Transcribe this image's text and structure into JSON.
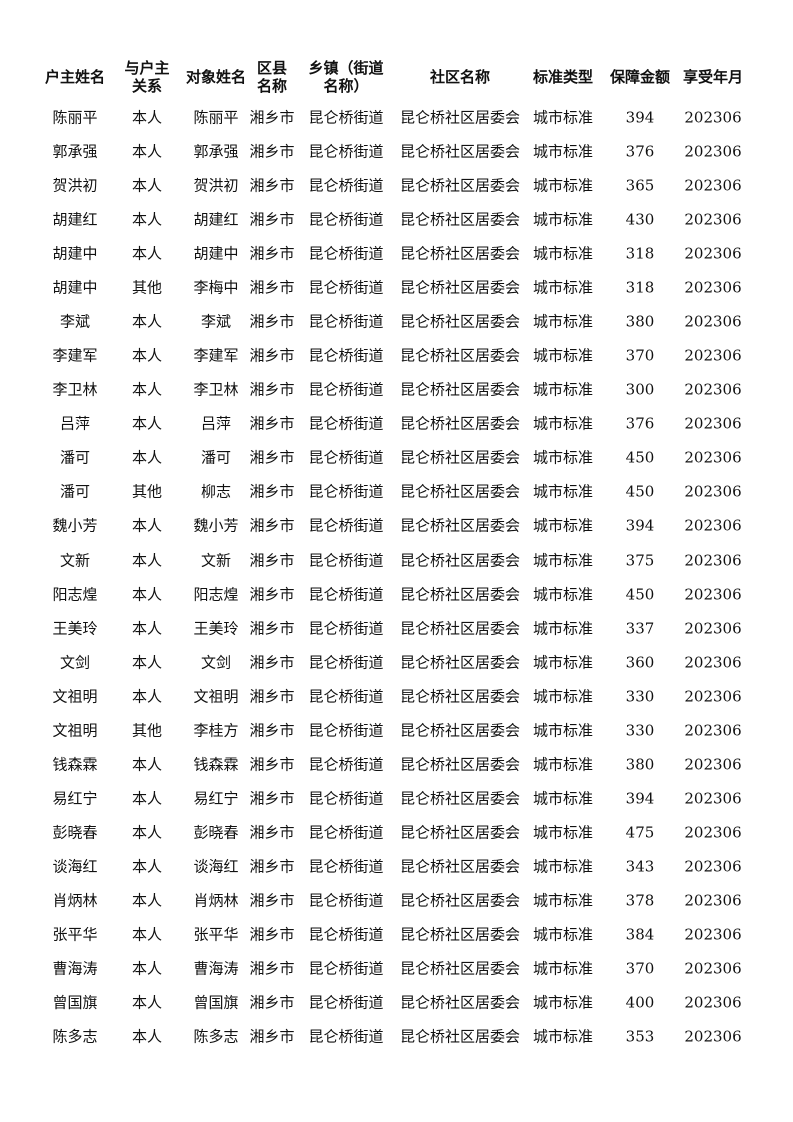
{
  "table": {
    "header": [
      "户主姓名",
      "与户主\n关系",
      "对象姓名",
      "区县\n名称",
      "乡镇（街道\n名称）",
      "社区名称",
      "标准类型",
      "保障金额",
      "享受年月"
    ],
    "rows": [
      [
        "陈丽平",
        "本人",
        "陈丽平",
        "湘乡市",
        "昆仑桥街道",
        "昆仑桥社区居委会",
        "城市标准",
        394,
        202306
      ],
      [
        "郭承强",
        "本人",
        "郭承强",
        "湘乡市",
        "昆仑桥街道",
        "昆仑桥社区居委会",
        "城市标准",
        376,
        202306
      ],
      [
        "贺洪初",
        "本人",
        "贺洪初",
        "湘乡市",
        "昆仑桥街道",
        "昆仑桥社区居委会",
        "城市标准",
        365,
        202306
      ],
      [
        "胡建红",
        "本人",
        "胡建红",
        "湘乡市",
        "昆仑桥街道",
        "昆仑桥社区居委会",
        "城市标准",
        430,
        202306
      ],
      [
        "胡建中",
        "本人",
        "胡建中",
        "湘乡市",
        "昆仑桥街道",
        "昆仑桥社区居委会",
        "城市标准",
        318,
        202306
      ],
      [
        "胡建中",
        "其他",
        "李梅中",
        "湘乡市",
        "昆仑桥街道",
        "昆仑桥社区居委会",
        "城市标准",
        318,
        202306
      ],
      [
        "李斌",
        "本人",
        "李斌",
        "湘乡市",
        "昆仑桥街道",
        "昆仑桥社区居委会",
        "城市标准",
        380,
        202306
      ],
      [
        "李建军",
        "本人",
        "李建军",
        "湘乡市",
        "昆仑桥街道",
        "昆仑桥社区居委会",
        "城市标准",
        370,
        202306
      ],
      [
        "李卫林",
        "本人",
        "李卫林",
        "湘乡市",
        "昆仑桥街道",
        "昆仑桥社区居委会",
        "城市标准",
        300,
        202306
      ],
      [
        "吕萍",
        "本人",
        "吕萍",
        "湘乡市",
        "昆仑桥街道",
        "昆仑桥社区居委会",
        "城市标准",
        376,
        202306
      ],
      [
        "潘可",
        "本人",
        "潘可",
        "湘乡市",
        "昆仑桥街道",
        "昆仑桥社区居委会",
        "城市标准",
        450,
        202306
      ],
      [
        "潘可",
        "其他",
        "柳志",
        "湘乡市",
        "昆仑桥街道",
        "昆仑桥社区居委会",
        "城市标准",
        450,
        202306
      ],
      [
        "魏小芳",
        "本人",
        "魏小芳",
        "湘乡市",
        "昆仑桥街道",
        "昆仑桥社区居委会",
        "城市标准",
        394,
        202306
      ],
      [
        "文新",
        "本人",
        "文新",
        "湘乡市",
        "昆仑桥街道",
        "昆仑桥社区居委会",
        "城市标准",
        375,
        202306
      ],
      [
        "阳志煌",
        "本人",
        "阳志煌",
        "湘乡市",
        "昆仑桥街道",
        "昆仑桥社区居委会",
        "城市标准",
        450,
        202306
      ],
      [
        "王美玲",
        "本人",
        "王美玲",
        "湘乡市",
        "昆仑桥街道",
        "昆仑桥社区居委会",
        "城市标准",
        337,
        202306
      ],
      [
        "文剑",
        "本人",
        "文剑",
        "湘乡市",
        "昆仑桥街道",
        "昆仑桥社区居委会",
        "城市标准",
        360,
        202306
      ],
      [
        "文祖明",
        "本人",
        "文祖明",
        "湘乡市",
        "昆仑桥街道",
        "昆仑桥社区居委会",
        "城市标准",
        330,
        202306
      ],
      [
        "文祖明",
        "其他",
        "李桂方",
        "湘乡市",
        "昆仑桥街道",
        "昆仑桥社区居委会",
        "城市标准",
        330,
        202306
      ],
      [
        "钱森霖",
        "本人",
        "钱森霖",
        "湘乡市",
        "昆仑桥街道",
        "昆仑桥社区居委会",
        "城市标准",
        380,
        202306
      ],
      [
        "易红宁",
        "本人",
        "易红宁",
        "湘乡市",
        "昆仑桥街道",
        "昆仑桥社区居委会",
        "城市标准",
        394,
        202306
      ],
      [
        "彭晓春",
        "本人",
        "彭晓春",
        "湘乡市",
        "昆仑桥街道",
        "昆仑桥社区居委会",
        "城市标准",
        475,
        202306
      ],
      [
        "谈海红",
        "本人",
        "谈海红",
        "湘乡市",
        "昆仑桥街道",
        "昆仑桥社区居委会",
        "城市标准",
        343,
        202306
      ],
      [
        "肖炳林",
        "本人",
        "肖炳林",
        "湘乡市",
        "昆仑桥街道",
        "昆仑桥社区居委会",
        "城市标准",
        378,
        202306
      ],
      [
        "张平华",
        "本人",
        "张平华",
        "湘乡市",
        "昆仑桥街道",
        "昆仑桥社区居委会",
        "城市标准",
        384,
        202306
      ],
      [
        "曹海涛",
        "本人",
        "曹海涛",
        "湘乡市",
        "昆仑桥街道",
        "昆仑桥社区居委会",
        "城市标准",
        370,
        202306
      ],
      [
        "曾国旗",
        "本人",
        "曾国旗",
        "湘乡市",
        "昆仑桥街道",
        "昆仑桥社区居委会",
        "城市标准",
        400,
        202306
      ],
      [
        "陈多志",
        "本人",
        "陈多志",
        "湘乡市",
        "昆仑桥街道",
        "昆仑桥社区居委会",
        "城市标准",
        353,
        202306
      ]
    ]
  }
}
